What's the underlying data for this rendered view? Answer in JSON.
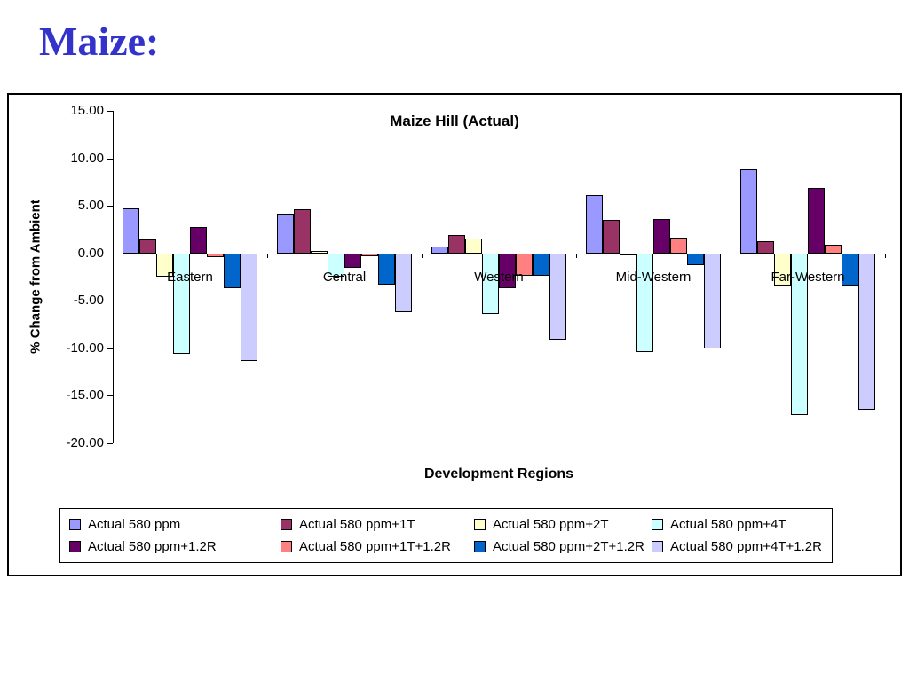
{
  "page": {
    "title": "Maize:"
  },
  "colors": {
    "heading": "#3333CC",
    "frame_border": "#000000"
  },
  "chart_data": {
    "type": "bar",
    "title": "Maize Hill (Actual)",
    "xlabel": "Development Regions",
    "ylabel": "% Change from Ambient",
    "ylim": [
      -20,
      15
    ],
    "grid": false,
    "legend_position": "bottom",
    "yticks": [
      {
        "v": 15,
        "label": "15.00"
      },
      {
        "v": 10,
        "label": "10.00"
      },
      {
        "v": 5,
        "label": "5.00"
      },
      {
        "v": 0,
        "label": "0.00"
      },
      {
        "v": -5,
        "label": "-5.00"
      },
      {
        "v": -10,
        "label": "-10.00"
      },
      {
        "v": -15,
        "label": "-15.00"
      },
      {
        "v": -20,
        "label": "-20.00"
      }
    ],
    "categories": [
      "Eastern",
      "Central",
      "Western",
      "Mid-Western",
      "Far-Western"
    ],
    "series": [
      {
        "name": "Actual 580 ppm",
        "color": "#9999FF",
        "values": [
          4.7,
          4.2,
          0.7,
          6.1,
          8.8
        ]
      },
      {
        "name": "Actual 580 ppm+1T",
        "color": "#993366",
        "values": [
          1.5,
          4.6,
          1.9,
          3.5,
          1.3
        ]
      },
      {
        "name": "Actual 580 ppm+2T",
        "color": "#FFFFCC",
        "values": [
          -2.5,
          0.3,
          1.6,
          -0.2,
          -3.4
        ]
      },
      {
        "name": "Actual 580 ppm+4T",
        "color": "#CCFFFF",
        "values": [
          -10.6,
          -2.5,
          -6.4,
          -10.4,
          -17.0
        ]
      },
      {
        "name": "Actual 580 ppm+1.2R",
        "color": "#660066",
        "values": [
          2.8,
          -1.5,
          -3.7,
          3.6,
          6.9
        ]
      },
      {
        "name": "Actual 580 ppm+1T+1.2R",
        "color": "#FF8080",
        "values": [
          -0.4,
          -0.3,
          -2.4,
          1.7,
          0.9
        ]
      },
      {
        "name": "Actual 580 ppm+2T+1.2R",
        "color": "#0066CC",
        "values": [
          -3.7,
          -3.3,
          -2.4,
          -1.2,
          -3.4
        ]
      },
      {
        "name": "Actual 580 ppm+4T+1.2R",
        "color": "#CCCCFF",
        "values": [
          -11.3,
          -6.2,
          -9.1,
          -10.0,
          -16.5
        ]
      }
    ]
  }
}
